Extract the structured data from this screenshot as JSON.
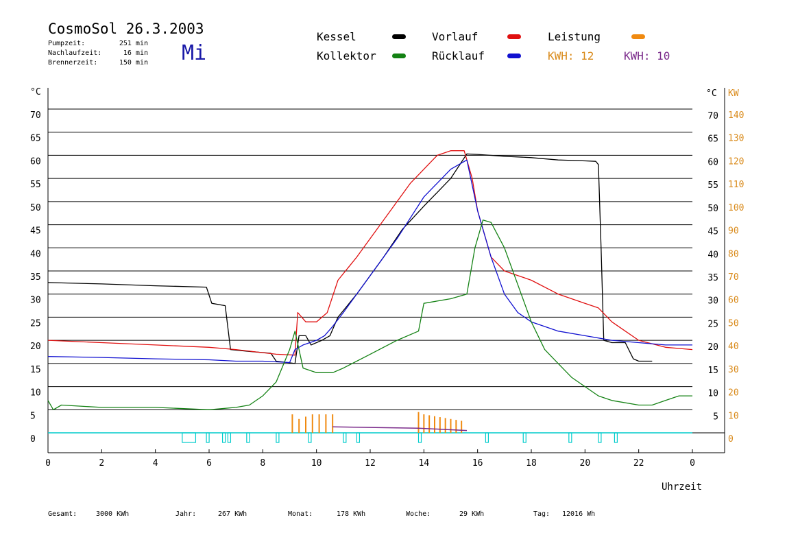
{
  "header": {
    "title": "CosmoSol 26.3.2003",
    "day": "Mi",
    "stats": [
      {
        "label": "Pumpzeit:",
        "value": "251 min"
      },
      {
        "label": "Nachlaufzeit:",
        "value": "16 min"
      },
      {
        "label": "Brennerzeit:",
        "value": "150 min"
      }
    ]
  },
  "legend": {
    "items": [
      {
        "name": "Kessel",
        "color": "#000000"
      },
      {
        "name": "Vorlauf",
        "color": "#e01010"
      },
      {
        "name": "Leistung",
        "color": "#f08a10"
      },
      {
        "name": "Kollektor",
        "color": "#148214"
      },
      {
        "name": "Rücklauf",
        "color": "#1010d0"
      }
    ],
    "kwh": [
      {
        "label": "KWH:",
        "value": "12",
        "color": "#d98a1a"
      },
      {
        "label": "KWH:",
        "value": "10",
        "color": "#7a2a8a"
      }
    ]
  },
  "footer": [
    {
      "label": "Gesamt:",
      "value": "3000 KWh"
    },
    {
      "label": "Jahr:",
      "value": "267 KWh"
    },
    {
      "label": "Monat:",
      "value": "178 KWh"
    },
    {
      "label": "Woche:",
      "value": "29 KWh"
    },
    {
      "label": "Tag:",
      "value": "12016 Wh"
    }
  ],
  "chart_data": {
    "type": "line",
    "xlabel": "Uhrzeit",
    "ylabel_left": "°C",
    "ylabel_right_temp": "°C",
    "ylabel_right_power": "KW",
    "xlim": [
      0,
      24
    ],
    "ylim": [
      0,
      70
    ],
    "x_ticks": [
      "0",
      "2",
      "4",
      "6",
      "8",
      "10",
      "12",
      "14",
      "16",
      "18",
      "20",
      "22",
      "0"
    ],
    "y_ticks": [
      "0",
      "5",
      "10",
      "15",
      "20",
      "25",
      "30",
      "35",
      "40",
      "45",
      "50",
      "55",
      "60",
      "65",
      "70"
    ],
    "y_ticks_right_temp": [
      "5",
      "10",
      "15",
      "20",
      "25",
      "30",
      "35",
      "40",
      "45",
      "50",
      "55",
      "60",
      "65",
      "70"
    ],
    "y_ticks_right_power": [
      "0",
      "10",
      "20",
      "30",
      "40",
      "50",
      "60",
      "70",
      "80",
      "90",
      "100",
      "110",
      "120",
      "130",
      "140"
    ],
    "grid": "horizontal",
    "series": [
      {
        "name": "Kessel",
        "color": "#000000",
        "points": [
          [
            0,
            32.5
          ],
          [
            2,
            32.2
          ],
          [
            4,
            31.8
          ],
          [
            5.9,
            31.5
          ],
          [
            6.1,
            28
          ],
          [
            6.6,
            27.5
          ],
          [
            6.8,
            18
          ],
          [
            7.5,
            17.6
          ],
          [
            8.3,
            17.2
          ],
          [
            8.5,
            15.5
          ],
          [
            9.2,
            15
          ],
          [
            9.35,
            21
          ],
          [
            9.6,
            21
          ],
          [
            9.8,
            19
          ],
          [
            10.2,
            20
          ],
          [
            10.5,
            21
          ],
          [
            10.8,
            25
          ],
          [
            11.5,
            30
          ],
          [
            12.5,
            38
          ],
          [
            13.2,
            44
          ],
          [
            14,
            49
          ],
          [
            14.5,
            52
          ],
          [
            15,
            55
          ],
          [
            15.6,
            60.3
          ],
          [
            16,
            60.2
          ],
          [
            17,
            59.8
          ],
          [
            18,
            59.5
          ],
          [
            19,
            59
          ],
          [
            20,
            58.8
          ],
          [
            20.4,
            58.7
          ],
          [
            20.5,
            58
          ],
          [
            20.6,
            40
          ],
          [
            20.7,
            20
          ],
          [
            21,
            19.5
          ],
          [
            21.5,
            19.5
          ],
          [
            21.8,
            16
          ],
          [
            22,
            15.5
          ],
          [
            22.5,
            15.5
          ]
        ]
      },
      {
        "name": "Vorlauf",
        "color": "#e01010",
        "points": [
          [
            0,
            20
          ],
          [
            2,
            19.5
          ],
          [
            4,
            19
          ],
          [
            6,
            18.5
          ],
          [
            7,
            18
          ],
          [
            8.5,
            17
          ],
          [
            9.2,
            16.8
          ],
          [
            9.3,
            26
          ],
          [
            9.6,
            24
          ],
          [
            10,
            24
          ],
          [
            10.4,
            26
          ],
          [
            10.8,
            33
          ],
          [
            11.5,
            38
          ],
          [
            12,
            42
          ],
          [
            13,
            50
          ],
          [
            13.5,
            54
          ],
          [
            14,
            57
          ],
          [
            14.5,
            60
          ],
          [
            15,
            61
          ],
          [
            15.5,
            61
          ],
          [
            15.8,
            55
          ],
          [
            16,
            48
          ],
          [
            16.5,
            38
          ],
          [
            17,
            35
          ],
          [
            17.5,
            34
          ],
          [
            18,
            33
          ],
          [
            19,
            30
          ],
          [
            20,
            28
          ],
          [
            20.5,
            27
          ],
          [
            21,
            24
          ],
          [
            21.5,
            22
          ],
          [
            22,
            20
          ],
          [
            23,
            18.5
          ],
          [
            24,
            18
          ]
        ]
      },
      {
        "name": "Rücklauf",
        "color": "#1010d0",
        "points": [
          [
            0,
            16.5
          ],
          [
            2,
            16.3
          ],
          [
            4,
            16
          ],
          [
            6,
            15.8
          ],
          [
            7,
            15.5
          ],
          [
            8,
            15.5
          ],
          [
            9,
            15.2
          ],
          [
            9.2,
            18
          ],
          [
            9.5,
            19
          ],
          [
            10,
            20
          ],
          [
            10.3,
            21
          ],
          [
            10.6,
            23
          ],
          [
            11,
            26
          ],
          [
            12,
            34
          ],
          [
            13,
            42
          ],
          [
            14,
            51
          ],
          [
            14.5,
            54
          ],
          [
            15,
            57
          ],
          [
            15.6,
            59
          ],
          [
            16,
            48
          ],
          [
            16.5,
            38
          ],
          [
            17,
            30
          ],
          [
            17.5,
            26
          ],
          [
            18,
            24
          ],
          [
            19,
            22
          ],
          [
            20,
            21
          ],
          [
            21,
            20
          ],
          [
            22,
            19.5
          ],
          [
            23,
            19
          ],
          [
            24,
            19
          ]
        ]
      },
      {
        "name": "Kollektor",
        "color": "#148214",
        "points": [
          [
            0,
            7
          ],
          [
            0.2,
            5
          ],
          [
            0.5,
            6
          ],
          [
            2,
            5.5
          ],
          [
            4,
            5.5
          ],
          [
            6,
            5
          ],
          [
            7,
            5.5
          ],
          [
            7.5,
            6
          ],
          [
            8,
            8
          ],
          [
            8.5,
            11
          ],
          [
            9,
            18
          ],
          [
            9.2,
            22
          ],
          [
            9.5,
            14
          ],
          [
            10,
            13
          ],
          [
            10.6,
            13
          ],
          [
            11,
            14
          ],
          [
            12,
            17
          ],
          [
            13,
            20
          ],
          [
            13.8,
            22
          ],
          [
            14,
            28
          ],
          [
            15,
            29
          ],
          [
            15.6,
            30
          ],
          [
            15.9,
            40
          ],
          [
            16.2,
            46
          ],
          [
            16.5,
            45.5
          ],
          [
            17,
            40
          ],
          [
            17.5,
            32
          ],
          [
            18,
            24
          ],
          [
            18.5,
            18
          ],
          [
            19,
            15
          ],
          [
            19.5,
            12
          ],
          [
            20,
            10
          ],
          [
            20.5,
            8
          ],
          [
            21,
            7
          ],
          [
            22,
            6
          ],
          [
            22.5,
            6
          ],
          [
            23,
            7
          ],
          [
            23.5,
            8
          ],
          [
            24,
            8
          ]
        ]
      }
    ],
    "power_series": {
      "name": "Leistung",
      "color": "#f08a10",
      "values": [
        [
          9.1,
          4
        ],
        [
          9.35,
          3
        ],
        [
          9.6,
          3.5
        ],
        [
          9.85,
          4
        ],
        [
          10.1,
          4
        ],
        [
          10.35,
          4
        ],
        [
          10.6,
          4
        ],
        [
          13.8,
          4.5
        ],
        [
          14.0,
          4
        ],
        [
          14.2,
          3.8
        ],
        [
          14.4,
          3.6
        ],
        [
          14.6,
          3.4
        ],
        [
          14.8,
          3.2
        ],
        [
          15.0,
          3
        ],
        [
          15.2,
          2.8
        ],
        [
          15.4,
          2.6
        ]
      ]
    },
    "status_bars": [
      [
        5.0,
        5.5
      ],
      [
        5.9,
        6.0
      ],
      [
        6.5,
        6.6
      ],
      [
        6.7,
        6.8
      ],
      [
        7.4,
        7.5
      ],
      [
        8.5,
        8.6
      ],
      [
        9.7,
        9.8
      ],
      [
        11.0,
        11.1
      ],
      [
        11.5,
        11.6
      ],
      [
        13.8,
        13.9
      ],
      [
        16.3,
        16.4
      ],
      [
        17.7,
        17.8
      ],
      [
        19.4,
        19.5
      ],
      [
        20.5,
        20.6
      ],
      [
        21.1,
        21.2
      ]
    ]
  }
}
